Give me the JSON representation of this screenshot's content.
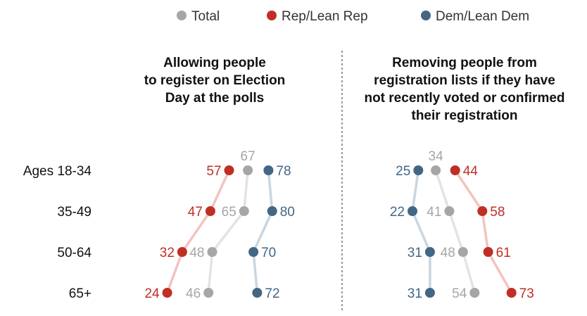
{
  "colors": {
    "total": "#a6a6a6",
    "rep": "#bf2f24",
    "dem": "#436685",
    "rep_line": "#f3c3bf",
    "dem_line": "#c9d6e0",
    "total_line": "#e3e3e3",
    "divider": "#777777"
  },
  "chart_data": {
    "type": "scatter",
    "legend": {
      "placement": "top",
      "items": [
        {
          "key": "total",
          "label": "Total"
        },
        {
          "key": "rep",
          "label": "Rep/Lean Rep"
        },
        {
          "key": "dem",
          "label": "Dem/Lean Dem"
        }
      ]
    },
    "categories": [
      "Ages 18-34",
      "35-49",
      "50-64",
      "65+"
    ],
    "panels": [
      {
        "title_lines": [
          "Allowing people",
          "to register on Election",
          "Day at the polls"
        ],
        "xlim": [
          20,
          85
        ],
        "series": [
          {
            "key": "rep",
            "name": "Rep/Lean Rep",
            "values": [
              57,
              47,
              32,
              24
            ]
          },
          {
            "key": "total",
            "name": "Total",
            "values": [
              67,
              65,
              48,
              46
            ]
          },
          {
            "key": "dem",
            "name": "Dem/Lean Dem",
            "values": [
              78,
              80,
              70,
              72
            ]
          }
        ]
      },
      {
        "title_lines": [
          "Removing people from",
          "registration lists if they have",
          "not recently voted or confirmed",
          "their registration"
        ],
        "xlim": [
          18,
          76
        ],
        "series": [
          {
            "key": "dem",
            "name": "Dem/Lean Dem",
            "values": [
              25,
              22,
              31,
              31
            ]
          },
          {
            "key": "total",
            "name": "Total",
            "values": [
              34,
              41,
              48,
              54
            ]
          },
          {
            "key": "rep",
            "name": "Rep/Lean Rep",
            "values": [
              44,
              58,
              61,
              73
            ]
          }
        ]
      }
    ]
  }
}
